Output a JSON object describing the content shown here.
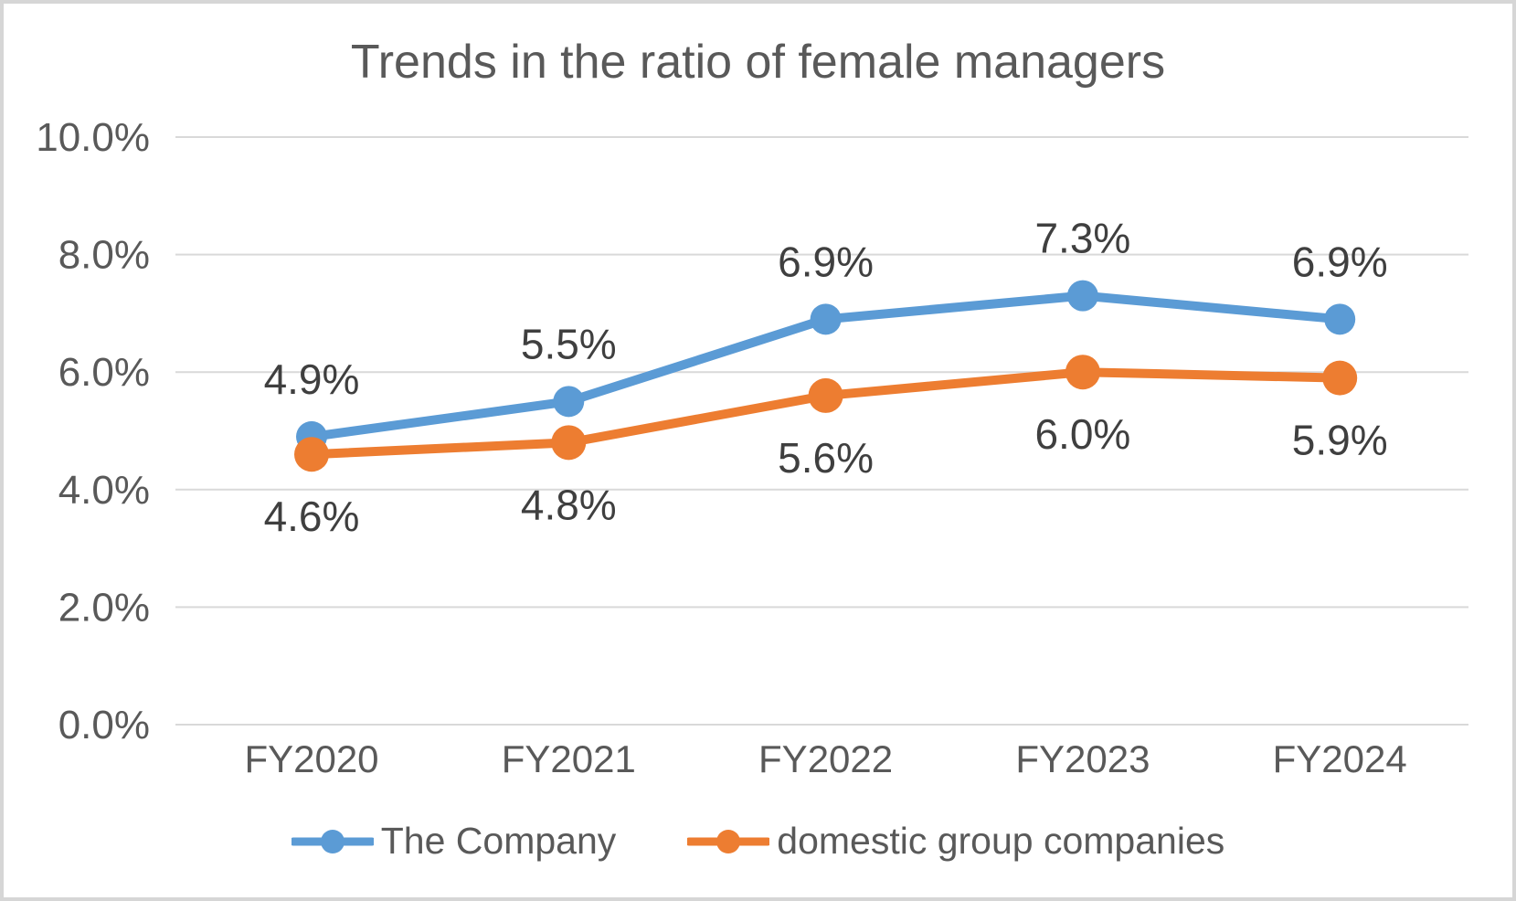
{
  "chart_data": {
    "type": "line",
    "title": "Trends in the ratio of female managers",
    "categories": [
      "FY2020",
      "FY2021",
      "FY2022",
      "FY2023",
      "FY2024"
    ],
    "series": [
      {
        "name": "The Company",
        "color": "#5B9BD5",
        "values": [
          4.9,
          5.5,
          6.9,
          7.3,
          6.9
        ],
        "data_labels": [
          "4.9%",
          "5.5%",
          "6.9%",
          "7.3%",
          "6.9%"
        ],
        "label_position": "above",
        "marker_radius": 17
      },
      {
        "name": "domestic group companies",
        "color": "#ED7D31",
        "values": [
          4.6,
          4.8,
          5.6,
          6.0,
          5.9
        ],
        "data_labels": [
          "4.6%",
          "4.8%",
          "5.6%",
          "6.0%",
          "5.9%"
        ],
        "label_position": "below",
        "marker_radius": 19
      }
    ],
    "y_axis": {
      "min": 0,
      "max": 10,
      "tick_values": [
        10,
        8,
        6,
        4,
        2,
        0
      ],
      "tick_labels": [
        "10.0%",
        "8.0%",
        "6.0%",
        "4.0%",
        "2.0%",
        "0.0%"
      ]
    },
    "grid": true,
    "legend_position": "bottom",
    "style": {
      "grid_color": "#D9D9D9",
      "axis_text_color": "#595959",
      "data_label_color": "#3F3F3F",
      "title_color": "#595959",
      "background": "#FFFFFF",
      "border_color": "#D6D6D6"
    }
  }
}
